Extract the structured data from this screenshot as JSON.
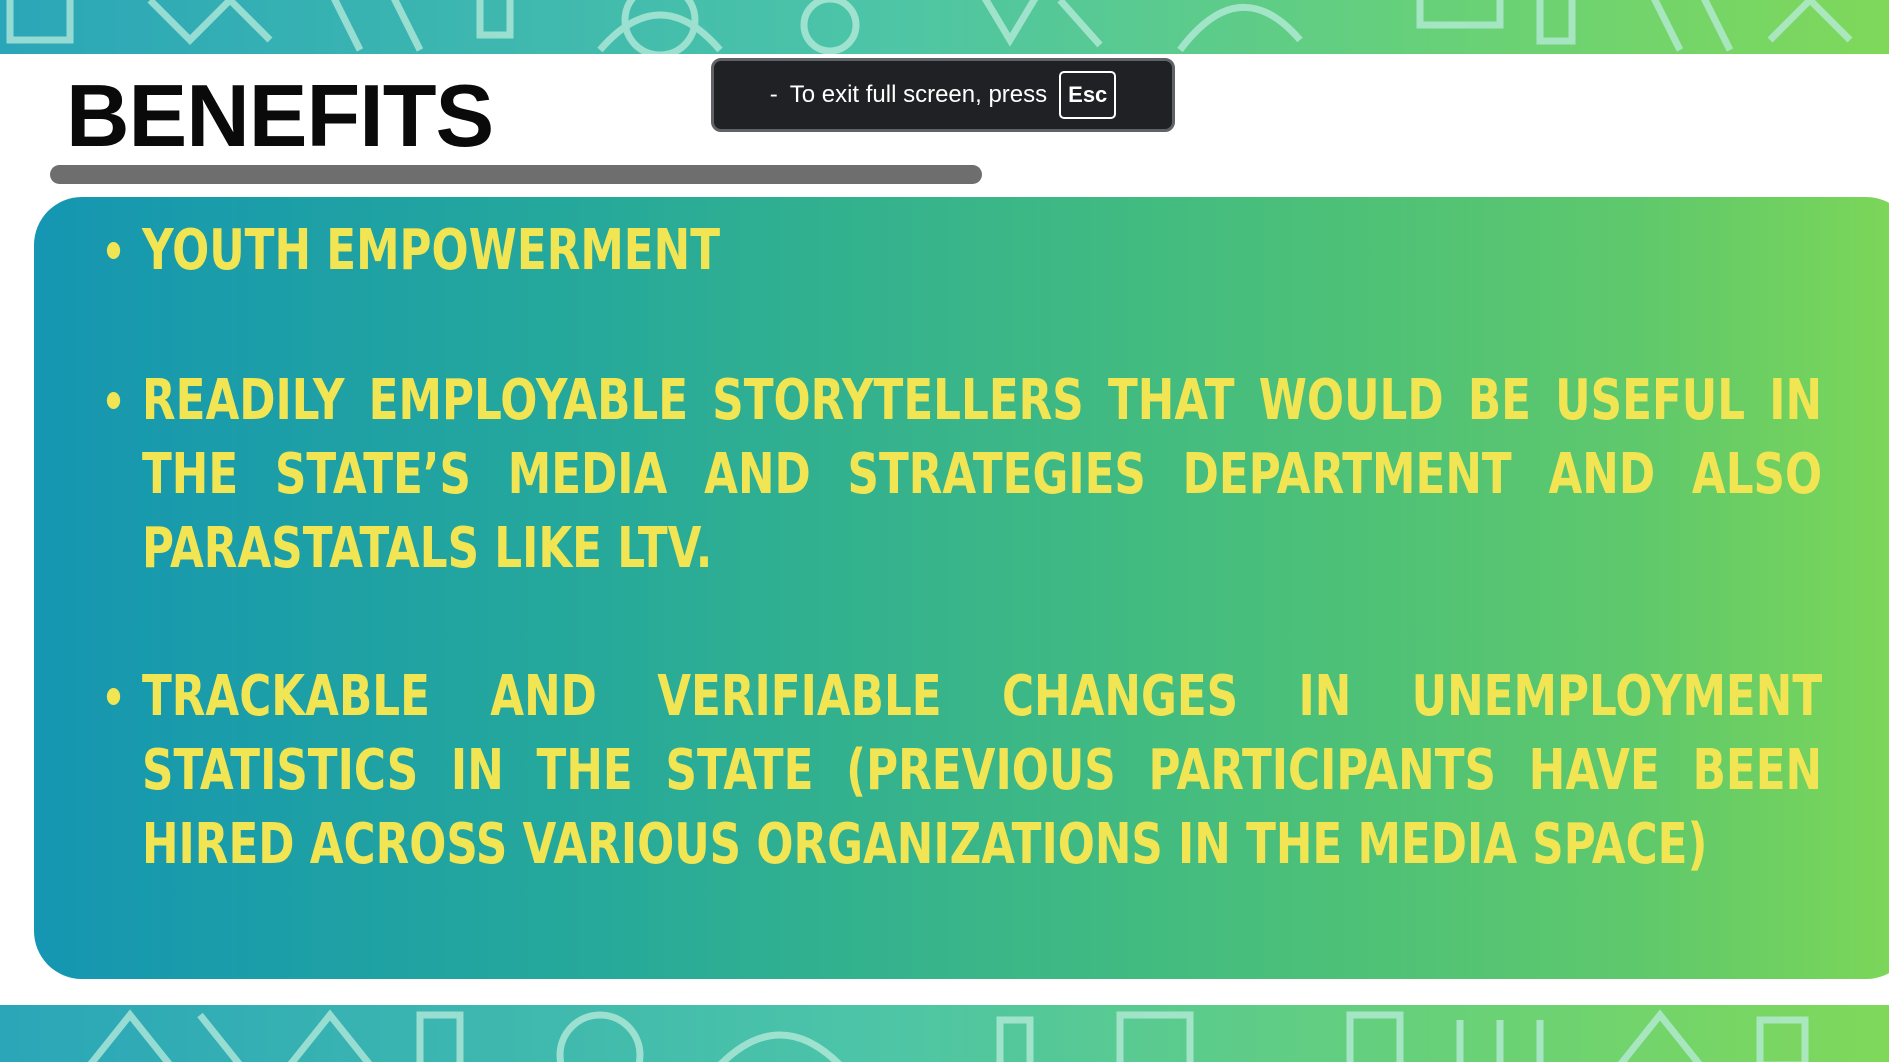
{
  "slide": {
    "title": "BENEFITS",
    "bullets": [
      "YOUTH EMPOWERMENT",
      "READILY EMPLOYABLE STORYTELLERS THAT WOULD BE USEFUL IN THE STATE’S MEDIA AND STRATEGIES DEPARTMENT AND ALSO PARASTATALS LIKE LTV.",
      "TRACKABLE AND VERIFIABLE CHANGES IN UNEMPLOYMENT STATISTICS IN THE STATE (PREVIOUS PARTICIPANTS HAVE BEEN HIRED ACROSS VARIOUS ORGANIZATIONS IN THE MEDIA SPACE)"
    ]
  },
  "fullscreen_notice": {
    "dash": "-",
    "text": "To exit full screen, press",
    "key": "Esc"
  },
  "colors": {
    "title": "#0a0a0a",
    "underline": "#6e6e6e",
    "bullet_text": "#f2e553",
    "panel_start": "#1596b2",
    "panel_end": "#7ed757",
    "toast_bg": "#202124"
  }
}
